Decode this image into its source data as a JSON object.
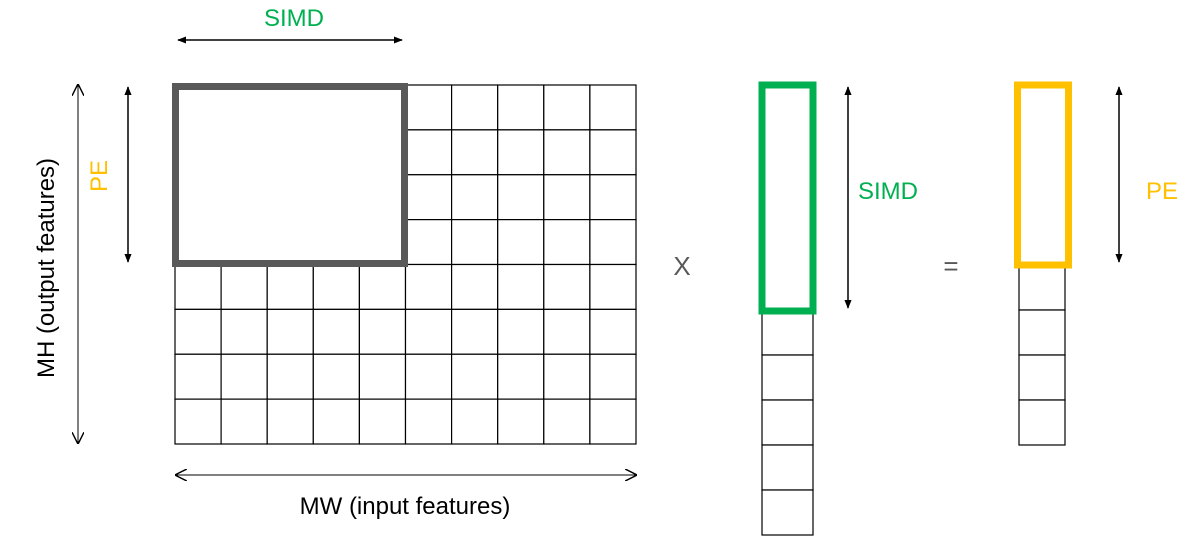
{
  "labels": {
    "simd_top": "SIMD",
    "pe_left": "PE",
    "mh_label": "MH (output features)",
    "mw_label": "MW (input features)",
    "simd_vector": "SIMD",
    "pe_output": "PE",
    "multiply_sign": "X",
    "equals_sign": "="
  },
  "matrix": {
    "rows": 8,
    "cols": 10,
    "tile_rows": 4,
    "tile_cols": 5
  },
  "input_vector": {
    "cells": 10,
    "highlighted_cells": 5
  },
  "output_vector": {
    "cells": 8,
    "highlighted_cells": 4
  },
  "colors": {
    "simd": "#00b050",
    "pe": "#ffc000",
    "tile": "#595959",
    "grid": "#000000",
    "text": "#000000",
    "operator": "#595959"
  }
}
